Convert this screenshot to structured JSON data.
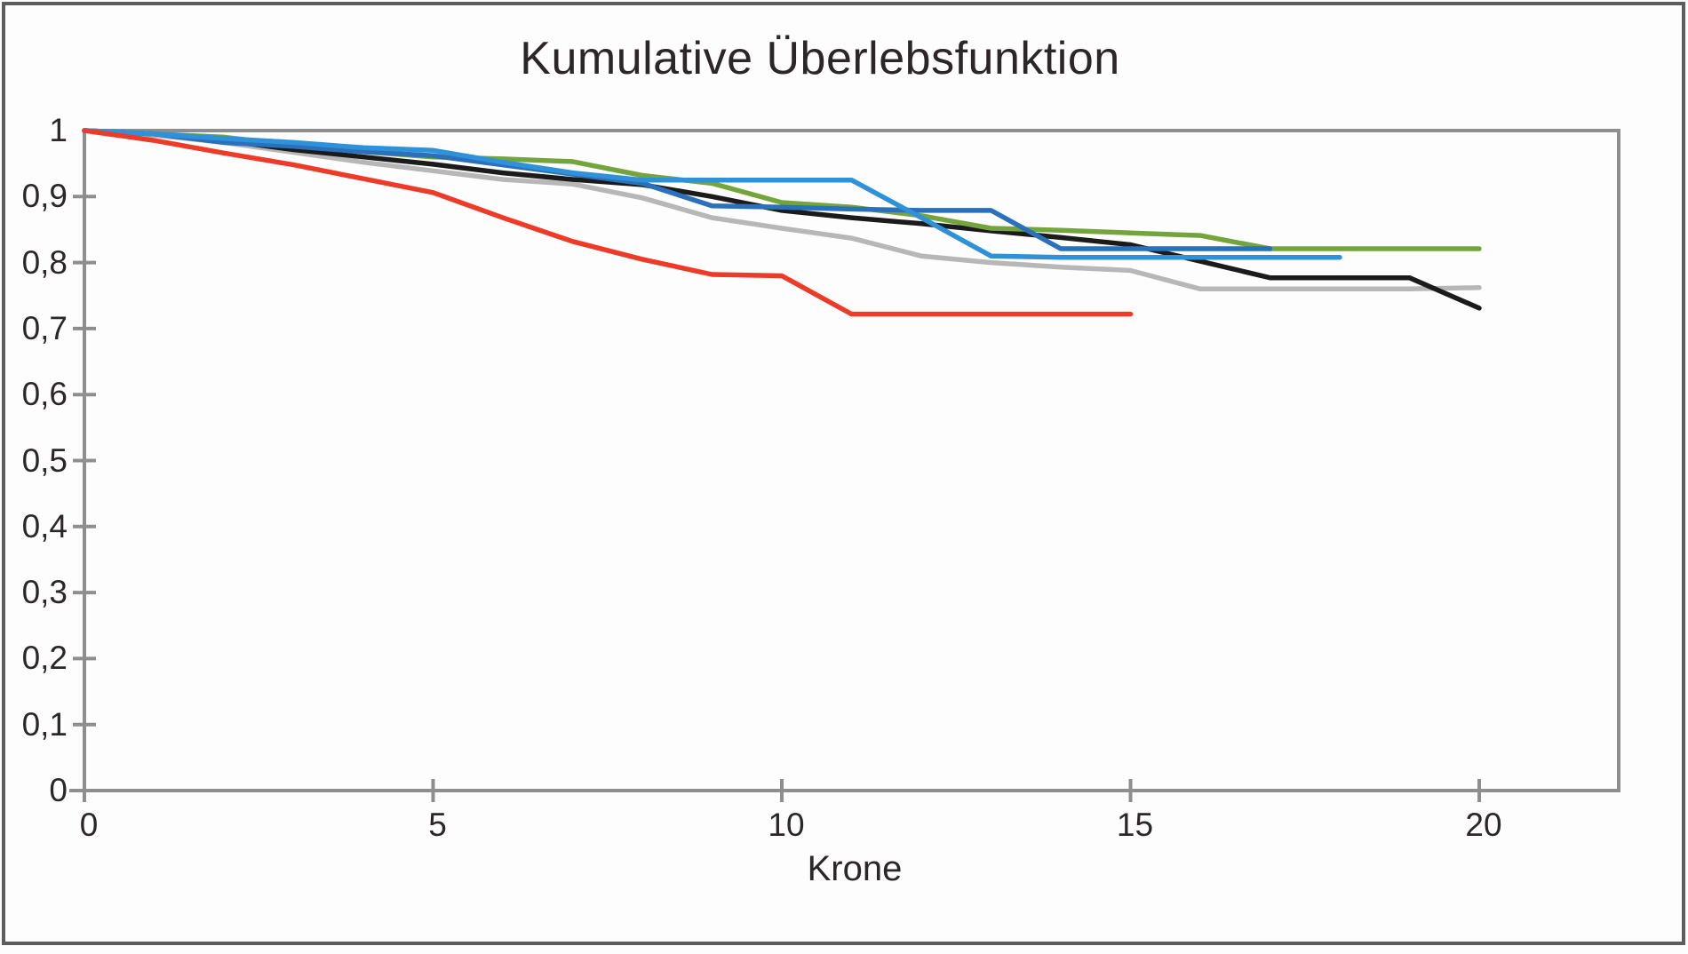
{
  "figure": {
    "title": "Kumulative Überlebsfunktion",
    "x_axis_label": "Krone"
  },
  "chart_data": {
    "type": "line",
    "title": "Kumulative Überlebsfunktion",
    "xlabel": "Krone",
    "ylabel": "",
    "xlim": [
      0,
      22
    ],
    "ylim": [
      0,
      1
    ],
    "grid": false,
    "legend": "none",
    "x": [
      0,
      1,
      2,
      3,
      4,
      5,
      6,
      7,
      8,
      9,
      10,
      11,
      12,
      13,
      14,
      15,
      16,
      17,
      18,
      19,
      20
    ],
    "x_tick_values": [
      0,
      5,
      10,
      15,
      20
    ],
    "x_tick_labels": [
      "0",
      "5",
      "10",
      "15",
      "20"
    ],
    "y_tick_values": [
      1,
      0.9,
      0.8,
      0.7,
      0.6,
      0.5,
      0.4,
      0.3,
      0.2,
      0.1,
      0
    ],
    "y_tick_labels": [
      "1",
      "0,9",
      "0,8",
      "0,7",
      "0,6",
      "0,5",
      "0,4",
      "0,3",
      "0,2",
      "0,1",
      "0"
    ],
    "axis_color": "#8e8e8e",
    "text_color": "#2b2627",
    "series": [
      {
        "name": "gray",
        "color": "#b7b7b7",
        "values": [
          1,
          0.993,
          0.982,
          0.967,
          0.952,
          0.939,
          0.926,
          0.919,
          0.898,
          0.868,
          0.852,
          0.837,
          0.81,
          0.8,
          0.793,
          0.788,
          0.76,
          0.76,
          0.76,
          0.76,
          0.762
        ]
      },
      {
        "name": "black",
        "color": "#1b1b1b",
        "values": [
          1,
          0.995,
          0.985,
          0.971,
          0.96,
          0.949,
          0.936,
          0.926,
          0.918,
          0.9,
          0.879,
          0.868,
          0.859,
          0.848,
          0.838,
          0.827,
          0.802,
          0.777,
          0.777,
          0.777,
          0.731
        ]
      },
      {
        "name": "green",
        "color": "#74a53c",
        "values": [
          1,
          0.995,
          0.99,
          0.978,
          0.968,
          0.96,
          0.957,
          0.953,
          0.932,
          0.92,
          0.891,
          0.884,
          0.871,
          0.852,
          0.849,
          0.845,
          0.841,
          0.821,
          0.821,
          0.821,
          0.821
        ]
      },
      {
        "name": "steel-blue",
        "color": "#2a70ba",
        "values": [
          1,
          0.995,
          0.982,
          0.976,
          0.968,
          0.962,
          0.948,
          0.934,
          0.92,
          0.886,
          0.884,
          0.881,
          0.879,
          0.879,
          0.821,
          0.821,
          0.821,
          0.821,
          null,
          null,
          null
        ]
      },
      {
        "name": "bright-blue",
        "color": "#2f92d8",
        "values": [
          1,
          0.995,
          0.988,
          0.982,
          0.974,
          0.97,
          0.952,
          0.936,
          0.925,
          0.925,
          0.925,
          0.925,
          0.868,
          0.81,
          0.808,
          0.808,
          0.808,
          0.808,
          0.808,
          null,
          null
        ]
      },
      {
        "name": "red",
        "color": "#ee3a28",
        "values": [
          1,
          0.985,
          0.966,
          0.948,
          0.927,
          0.906,
          0.868,
          0.832,
          0.805,
          0.782,
          0.78,
          0.722,
          0.722,
          0.722,
          0.722,
          0.722,
          null,
          null,
          null,
          null,
          null
        ]
      }
    ]
  },
  "layout_note": "survival-curve line chart, no legend, plot frame box with outside tick labels"
}
